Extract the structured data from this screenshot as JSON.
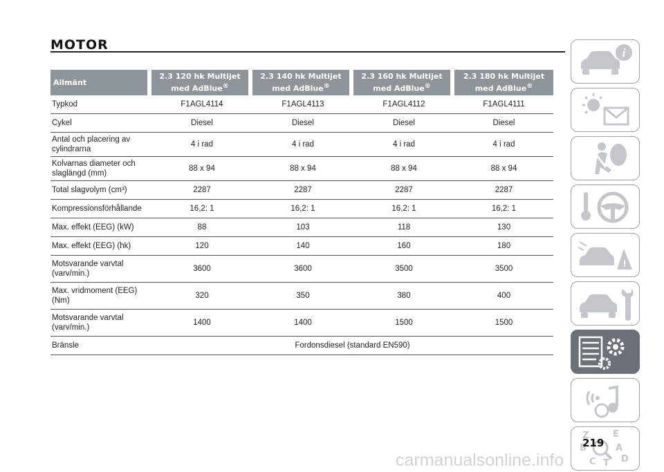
{
  "title": "MOTOR",
  "page_number": "219",
  "watermark": "carmanualsonline.info",
  "table": {
    "headers": [
      "Allmänt",
      "2.3 120 hk Multijet med AdBlue",
      "2.3 140 hk Multijet med AdBlue",
      "2.3 160 hk Multijet med AdBlue",
      "2.3 180 hk Multijet med AdBlue"
    ],
    "registered_mark": "®",
    "rows": [
      {
        "label": "Typkod",
        "values": [
          "F1AGL4114",
          "F1AGL4113",
          "F1AGL4112",
          "F1AGL4111"
        ]
      },
      {
        "label": "Cykel",
        "values": [
          "Diesel",
          "Diesel",
          "Diesel",
          "Diesel"
        ]
      },
      {
        "label": "Antal och placering av cylindrarna",
        "values": [
          "4 i rad",
          "4 i rad",
          "4 i rad",
          "4 i rad"
        ]
      },
      {
        "label": "Kolvarnas diameter och slaglängd (mm)",
        "values": [
          "88 x 94",
          "88 x 94",
          "88 x 94",
          "88 x 94"
        ]
      },
      {
        "label": "Total slagvolym (cm³)",
        "values": [
          "2287",
          "2287",
          "2287",
          "2287"
        ]
      },
      {
        "label": "Kompressionsförhållande",
        "values": [
          "16,2: 1",
          "16,2: 1",
          "16,2: 1",
          "16,2: 1"
        ]
      },
      {
        "label": "Max. effekt (EEG) (kW)",
        "values": [
          "88",
          "103",
          "118",
          "130"
        ]
      },
      {
        "label": "Max. effekt (EEG) (hk)",
        "values": [
          "120",
          "140",
          "160",
          "180"
        ]
      },
      {
        "label": "Motsvarande varvtal (varv/min.)",
        "values": [
          "3600",
          "3600",
          "3500",
          "3500"
        ]
      },
      {
        "label": "Max. vridmoment (EEG) (Nm)",
        "values": [
          "320",
          "350",
          "380",
          "400"
        ]
      },
      {
        "label": "Motsvarande varvtal (varv/min.)",
        "values": [
          "1400",
          "1400",
          "1500",
          "1500"
        ]
      },
      {
        "label": "Bränsle",
        "merged_value": "Fordonsdiesel (standard EN590)"
      }
    ]
  },
  "sidebar": {
    "tabs": [
      {
        "icon": "car-info-icon",
        "active": false
      },
      {
        "icon": "warning-lights-icon",
        "active": false
      },
      {
        "icon": "airbag-safety-icon",
        "active": false
      },
      {
        "icon": "steering-wheel-icon",
        "active": false
      },
      {
        "icon": "emergency-icon",
        "active": false
      },
      {
        "icon": "maintenance-icon",
        "active": false
      },
      {
        "icon": "technical-data-icon",
        "active": true
      },
      {
        "icon": "multimedia-icon",
        "active": false
      },
      {
        "icon": "index-icon",
        "active": false
      }
    ],
    "index_letters": [
      "Z",
      "E",
      "B",
      "A",
      "C",
      "T",
      "D"
    ],
    "colors": {
      "tab_border": "#9aa0a6",
      "active_tab": "#6b7177",
      "header_bg": "#8d949a"
    }
  }
}
